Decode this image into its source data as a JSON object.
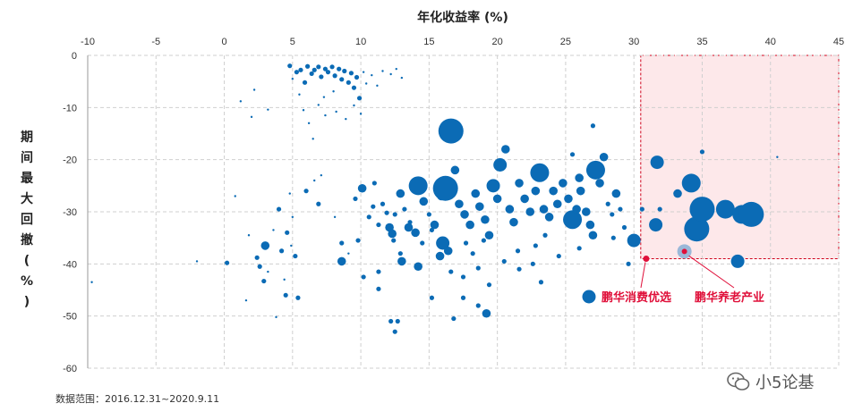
{
  "chart_data": {
    "type": "scatter",
    "title": "",
    "xlabel": "年化收益率 (%)",
    "ylabel": "期间最大回撤(%)",
    "xlim": [
      -10,
      45
    ],
    "ylim": [
      -60,
      0
    ],
    "x_ticks": [
      "-10",
      "-5",
      "0",
      "5",
      "10",
      "15",
      "20",
      "25",
      "30",
      "35",
      "40",
      "45"
    ],
    "y_ticks": [
      "0",
      "-10",
      "-20",
      "-30",
      "-40",
      "-50",
      "-60"
    ],
    "x_axis_position": "top",
    "grid": true,
    "series_color": "#0b6bb5",
    "highlight_region": {
      "x": [
        30.5,
        45
      ],
      "y": [
        -39,
        0
      ],
      "fill": "#fde8ea",
      "stroke": "#d0021b"
    },
    "points": [
      [
        -9.7,
        -43.5,
        1
      ],
      [
        -2.0,
        -39.5,
        1
      ],
      [
        0.2,
        -39.8,
        2
      ],
      [
        0.8,
        -27,
        1
      ],
      [
        1.2,
        -8.8,
        1
      ],
      [
        1.8,
        -34.5,
        1
      ],
      [
        1.6,
        -47,
        1
      ],
      [
        2.0,
        -11.8,
        1
      ],
      [
        2.2,
        -6.6,
        1
      ],
      [
        2.4,
        -38.8,
        2
      ],
      [
        2.6,
        -40.5,
        2
      ],
      [
        2.9,
        -43.3,
        2
      ],
      [
        3.0,
        -36.5,
        3
      ],
      [
        3.2,
        -10.4,
        1
      ],
      [
        3.2,
        -41.5,
        1
      ],
      [
        3.6,
        -33.5,
        1
      ],
      [
        3.8,
        -50.2,
        1
      ],
      [
        4.0,
        -29.5,
        2
      ],
      [
        4.2,
        -37.5,
        2
      ],
      [
        4.4,
        -43,
        1
      ],
      [
        4.5,
        -46,
        2
      ],
      [
        4.6,
        -34,
        2
      ],
      [
        4.8,
        -26.5,
        1
      ],
      [
        4.9,
        -36.5,
        1
      ],
      [
        5.0,
        -31,
        1
      ],
      [
        5.2,
        -38.5,
        2
      ],
      [
        5.4,
        -46.5,
        2
      ],
      [
        4.8,
        -2,
        2
      ],
      [
        5.0,
        -4.5,
        1
      ],
      [
        5.3,
        -3.2,
        2
      ],
      [
        5.6,
        -2.8,
        2
      ],
      [
        5.9,
        -5.2,
        2
      ],
      [
        6.1,
        -2.1,
        2
      ],
      [
        6.4,
        -3.5,
        2
      ],
      [
        6.6,
        -2.8,
        2
      ],
      [
        6.9,
        -2.2,
        2
      ],
      [
        7.1,
        -4.1,
        2
      ],
      [
        7.4,
        -2.6,
        2
      ],
      [
        7.6,
        -3.2,
        2
      ],
      [
        7.9,
        -2.2,
        2
      ],
      [
        8.1,
        -3.9,
        2
      ],
      [
        8.4,
        -2.6,
        2
      ],
      [
        8.6,
        -4.6,
        2
      ],
      [
        8.8,
        -3,
        2
      ],
      [
        9.1,
        -5.2,
        2
      ],
      [
        9.3,
        -3.4,
        2
      ],
      [
        9.5,
        -6.2,
        2
      ],
      [
        9.7,
        -4.2,
        2
      ],
      [
        9.9,
        -8.2,
        2
      ],
      [
        10.2,
        -3.2,
        1
      ],
      [
        10.4,
        -5.4,
        1
      ],
      [
        10.8,
        -3.8,
        1
      ],
      [
        11.2,
        -5.8,
        1
      ],
      [
        11.6,
        -3,
        1
      ],
      [
        12.2,
        -3.6,
        1
      ],
      [
        12.6,
        -2.6,
        1
      ],
      [
        13.0,
        -4.3,
        1
      ],
      [
        5.5,
        -7.5,
        1
      ],
      [
        5.8,
        -10.5,
        1
      ],
      [
        6.2,
        -13,
        1
      ],
      [
        6.9,
        -9.5,
        1
      ],
      [
        7.4,
        -11.5,
        1
      ],
      [
        8.2,
        -10.8,
        1
      ],
      [
        8.9,
        -12.2,
        1
      ],
      [
        9.5,
        -9.6,
        1
      ],
      [
        10.0,
        -11.2,
        1
      ],
      [
        6.5,
        -16,
        1
      ],
      [
        7.3,
        -8.0,
        1
      ],
      [
        8.0,
        -6.9,
        1
      ],
      [
        6.0,
        -26,
        2
      ],
      [
        6.6,
        -24,
        1
      ],
      [
        6.9,
        -28.5,
        2
      ],
      [
        7.1,
        -23,
        1
      ],
      [
        8.1,
        -31,
        1
      ],
      [
        8.6,
        -36,
        2
      ],
      [
        9.1,
        -38,
        1
      ],
      [
        9.6,
        -27.5,
        2
      ],
      [
        10.1,
        -25.5,
        3
      ],
      [
        10.6,
        -31,
        2
      ],
      [
        10.9,
        -29,
        2
      ],
      [
        11.3,
        -32.5,
        2
      ],
      [
        11.6,
        -28.5,
        2
      ],
      [
        12.1,
        -33,
        3
      ],
      [
        12.5,
        -30.5,
        2
      ],
      [
        12.9,
        -26.5,
        3
      ],
      [
        13.2,
        -29.5,
        2
      ],
      [
        13.6,
        -32,
        2
      ],
      [
        14.0,
        -34,
        3
      ],
      [
        14.2,
        -25,
        5
      ],
      [
        14.6,
        -28,
        3
      ],
      [
        15.0,
        -30.5,
        2
      ],
      [
        15.4,
        -32.5,
        3
      ],
      [
        15.9,
        -27,
        3
      ],
      [
        16.2,
        -25.5,
        6
      ],
      [
        16.6,
        -14.5,
        6
      ],
      [
        16.9,
        -22,
        3
      ],
      [
        17.2,
        -28.5,
        3
      ],
      [
        17.6,
        -30.5,
        3
      ],
      [
        18.0,
        -32.5,
        3
      ],
      [
        18.4,
        -26.5,
        3
      ],
      [
        18.7,
        -29,
        3
      ],
      [
        19.1,
        -31.5,
        3
      ],
      [
        19.4,
        -34.5,
        3
      ],
      [
        19.7,
        -25,
        4
      ],
      [
        20.0,
        -27.5,
        3
      ],
      [
        20.2,
        -21,
        4
      ],
      [
        20.6,
        -18,
        3
      ],
      [
        20.9,
        -29.5,
        3
      ],
      [
        21.2,
        -32,
        3
      ],
      [
        21.6,
        -24.5,
        3
      ],
      [
        22.0,
        -27.5,
        3
      ],
      [
        22.4,
        -30,
        3
      ],
      [
        22.8,
        -26,
        3
      ],
      [
        23.1,
        -22.5,
        5
      ],
      [
        23.4,
        -29.5,
        3
      ],
      [
        23.8,
        -31,
        3
      ],
      [
        24.1,
        -26,
        3
      ],
      [
        24.4,
        -28.5,
        3
      ],
      [
        24.8,
        -24.5,
        3
      ],
      [
        25.2,
        -27.5,
        3
      ],
      [
        25.5,
        -31.5,
        5
      ],
      [
        25.8,
        -29.5,
        3
      ],
      [
        26.1,
        -26,
        3
      ],
      [
        26.5,
        -30,
        3
      ],
      [
        26.8,
        -32.5,
        3
      ],
      [
        27.2,
        -22,
        5
      ],
      [
        27.5,
        -24.5,
        3
      ],
      [
        27.8,
        -19.5,
        3
      ],
      [
        28.1,
        -28.5,
        2
      ],
      [
        28.4,
        -30.5,
        2
      ],
      [
        28.7,
        -26.5,
        3
      ],
      [
        29.0,
        -29.5,
        2
      ],
      [
        29.3,
        -33,
        2
      ],
      [
        25.5,
        -19,
        2
      ],
      [
        26.0,
        -23.5,
        3
      ],
      [
        27.0,
        -13.5,
        2
      ],
      [
        20.5,
        -39.5,
        2
      ],
      [
        21.6,
        -41,
        2
      ],
      [
        22.6,
        -40,
        2
      ],
      [
        23.2,
        -43.5,
        2
      ],
      [
        24.5,
        -38.5,
        2
      ],
      [
        26.0,
        -37,
        2
      ],
      [
        27.0,
        -34.5,
        3
      ],
      [
        13.0,
        -39.5,
        3
      ],
      [
        14.2,
        -40.5,
        3
      ],
      [
        15.8,
        -38.5,
        3
      ],
      [
        16.6,
        -41.5,
        2
      ],
      [
        11.3,
        -41.5,
        2
      ],
      [
        12.4,
        -35.5,
        2
      ],
      [
        12.9,
        -38,
        2
      ],
      [
        16.0,
        -36,
        4
      ],
      [
        16.4,
        -37.5,
        3
      ],
      [
        18.6,
        -40.8,
        2
      ],
      [
        19.4,
        -44,
        2
      ],
      [
        17.5,
        -46.5,
        2
      ],
      [
        18.6,
        -48,
        2
      ],
      [
        19.2,
        -49.5,
        3
      ],
      [
        15.2,
        -46.5,
        2
      ],
      [
        16.8,
        -50.5,
        2
      ],
      [
        11.3,
        -44.8,
        2
      ],
      [
        10.2,
        -42.5,
        2
      ],
      [
        12.2,
        -51,
        2
      ],
      [
        12.5,
        -53,
        2
      ],
      [
        12.7,
        -51,
        2
      ],
      [
        8.6,
        -39.5,
        3
      ],
      [
        9.8,
        -35.5,
        2
      ],
      [
        11.0,
        -24.5,
        2
      ],
      [
        11.9,
        -30.2,
        2
      ],
      [
        12.3,
        -34.2,
        3
      ],
      [
        13.5,
        -33,
        3
      ],
      [
        14.5,
        -36,
        2
      ],
      [
        15.2,
        -33.5,
        2
      ],
      [
        17.7,
        -36,
        2
      ],
      [
        18.2,
        -38,
        2
      ],
      [
        17.5,
        -42.5,
        2
      ],
      [
        19.0,
        -35.5,
        2
      ],
      [
        21.5,
        -37.5,
        2
      ],
      [
        22.8,
        -36.5,
        2
      ],
      [
        23.5,
        -34.5,
        2
      ],
      [
        28.5,
        -35,
        2
      ],
      [
        29.6,
        -40,
        2
      ],
      [
        30.0,
        -35.5,
        4
      ],
      [
        30.6,
        -29.5,
        2
      ],
      [
        31.7,
        -20.5,
        4
      ],
      [
        31.6,
        -32.5,
        4
      ],
      [
        31.9,
        -29.5,
        2
      ],
      [
        33.2,
        -26.5,
        3
      ],
      [
        33.7,
        -37.6,
        4
      ],
      [
        34.2,
        -24.5,
        5
      ],
      [
        34.6,
        -33.3,
        6
      ],
      [
        35.0,
        -29.5,
        6
      ],
      [
        35.0,
        -18.5,
        2
      ],
      [
        36.7,
        -29.5,
        5
      ],
      [
        37.6,
        -39.5,
        4
      ],
      [
        37.9,
        -30.5,
        5
      ],
      [
        38.6,
        -30.5,
        6
      ],
      [
        40.5,
        -19.5,
        1
      ]
    ],
    "special_points": [
      {
        "label": "鹏华消费优选",
        "x": 30.9,
        "y": -39
      },
      {
        "label": "鹏华养老产业",
        "x": 33.7,
        "y": -37.6
      }
    ],
    "footnote": "数据范围：2016.12.31~2020.9.11"
  },
  "watermark": {
    "text": "小5论基",
    "icon": "wechat-icon"
  }
}
